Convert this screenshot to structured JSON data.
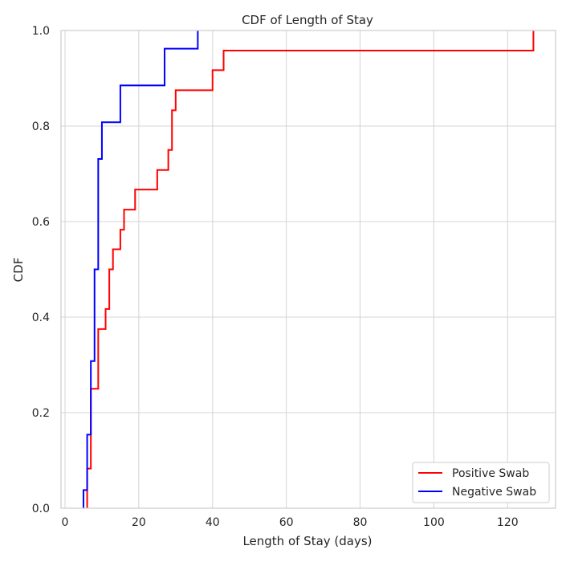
{
  "chart_data": {
    "type": "line",
    "title": "CDF of Length of Stay",
    "xlabel": "Length of Stay (days)",
    "ylabel": "CDF",
    "xlim": [
      0,
      133
    ],
    "ylim": [
      0.0,
      1.0
    ],
    "xticks": [
      "0",
      "20",
      "40",
      "60",
      "80",
      "100",
      "120"
    ],
    "xtick_values": [
      0,
      20,
      40,
      60,
      80,
      100,
      120
    ],
    "yticks": [
      "0.0",
      "0.2",
      "0.4",
      "0.6",
      "0.8",
      "1.0"
    ],
    "ytick_values": [
      0.0,
      0.2,
      0.4,
      0.6,
      0.8,
      1.0
    ],
    "grid": true,
    "legend_position": "bottom-right",
    "series": [
      {
        "name": "Positive Swab",
        "color": "#ff0000",
        "step": "post",
        "x": [
          6,
          7,
          9,
          11,
          12,
          13,
          15,
          16,
          19,
          25,
          28,
          29,
          30,
          40,
          43,
          127
        ],
        "y": [
          0.083,
          0.25,
          0.375,
          0.417,
          0.5,
          0.542,
          0.583,
          0.625,
          0.667,
          0.708,
          0.75,
          0.833,
          0.875,
          0.917,
          0.958,
          1.0
        ]
      },
      {
        "name": "Negative Swab",
        "color": "#0000ff",
        "step": "post",
        "x": [
          5,
          6,
          7,
          8,
          9,
          10,
          15,
          27,
          36
        ],
        "y": [
          0.038,
          0.154,
          0.308,
          0.5,
          0.731,
          0.808,
          0.885,
          0.962,
          1.0
        ]
      }
    ]
  }
}
